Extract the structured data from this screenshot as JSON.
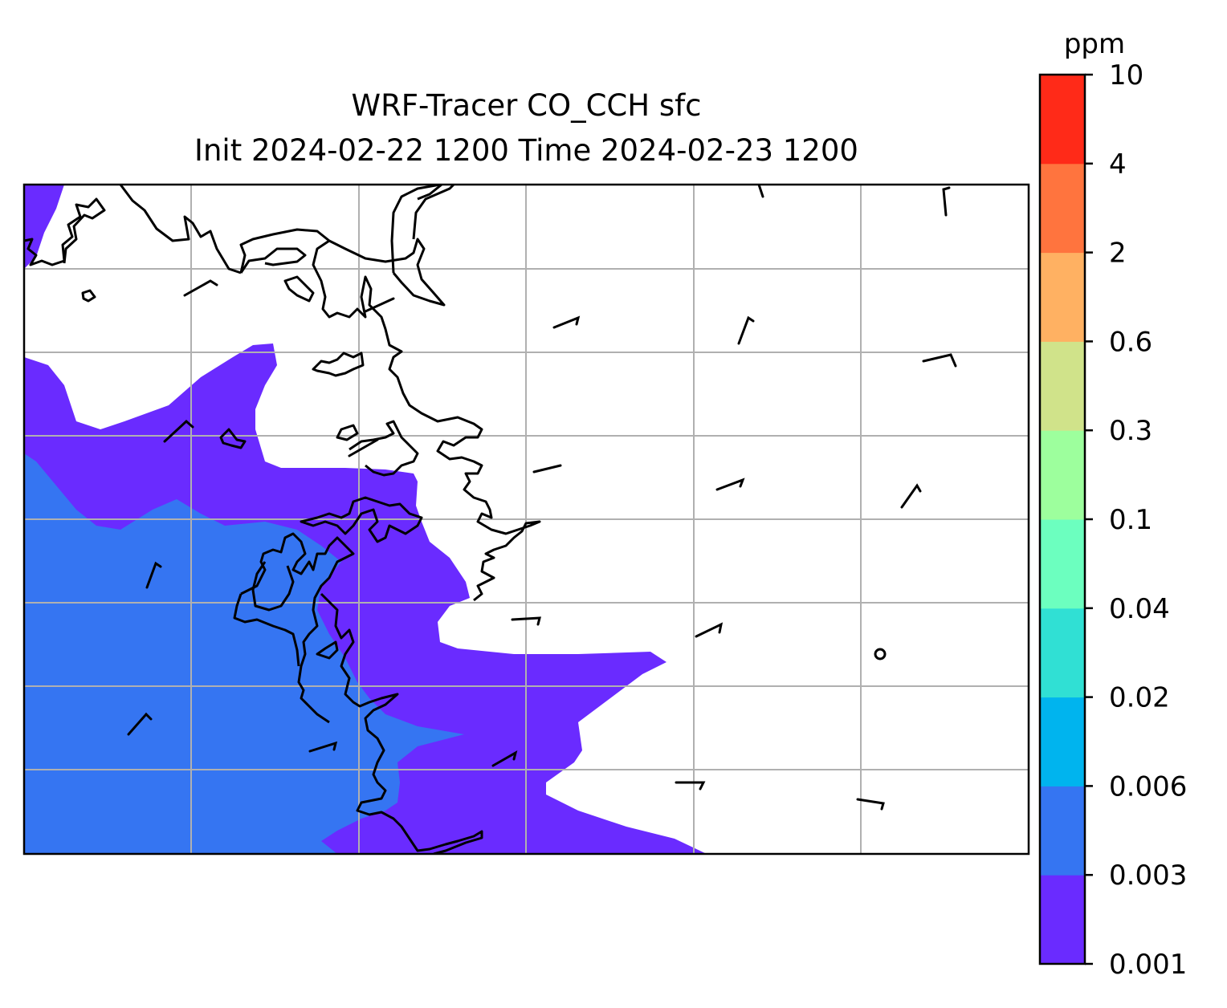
{
  "title": {
    "line1": "WRF-Tracer CO_CCH sfc",
    "line2": "Init 2024-02-22 1200 Time 2024-02-23 1200"
  },
  "colorbar": {
    "unit": "ppm",
    "ticks": [
      "0.001",
      "0.003",
      "0.006",
      "0.02",
      "0.04",
      "0.1",
      "0.3",
      "0.6",
      "2",
      "4",
      "10"
    ],
    "colors": [
      "#6a2bff",
      "#3575f2",
      "#00b4ee",
      "#30e0d4",
      "#6cffbf",
      "#9dff9d",
      "#d0e38a",
      "#ffb162",
      "#ff743e",
      "#ff2a18"
    ]
  },
  "map": {
    "contour_levels_shown": [
      "0.001-0.003",
      "0.003-0.006"
    ],
    "gridlines": true
  }
}
